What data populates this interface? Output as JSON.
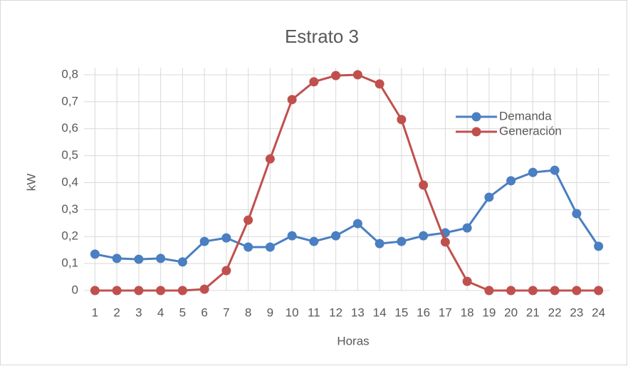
{
  "chart_data": {
    "type": "line",
    "title": "Estrato 3",
    "x_label": "Horas",
    "y_label": "kW",
    "categories": [
      "1",
      "2",
      "3",
      "4",
      "5",
      "6",
      "7",
      "8",
      "9",
      "10",
      "11",
      "12",
      "13",
      "14",
      "15",
      "16",
      "17",
      "18",
      "19",
      "20",
      "21",
      "22",
      "23",
      "24"
    ],
    "series": [
      {
        "name": "Demanda",
        "color": "#4a7fc1",
        "values": [
          0.135,
          0.119,
          0.116,
          0.119,
          0.106,
          0.182,
          0.195,
          0.161,
          0.161,
          0.203,
          0.182,
          0.203,
          0.248,
          0.174,
          0.182,
          0.203,
          0.214,
          0.232,
          0.346,
          0.407,
          0.438,
          0.446,
          0.285,
          0.164
        ]
      },
      {
        "name": "Generación",
        "color": "#c0504d",
        "values": [
          0,
          0,
          0,
          0,
          0,
          0.005,
          0.074,
          0.261,
          0.488,
          0.708,
          0.774,
          0.797,
          0.8,
          0.766,
          0.634,
          0.391,
          0.18,
          0.034,
          0,
          0,
          0,
          0,
          0,
          0
        ]
      }
    ],
    "ylim": [
      0,
      0.8
    ],
    "yticks": [
      0,
      {
        "value": 0.1,
        "label": "0,1"
      },
      {
        "value": 0.2,
        "label": "0,2"
      },
      {
        "value": 0.3,
        "label": "0,3"
      },
      {
        "value": 0.4,
        "label": "0,4"
      },
      {
        "value": 0.5,
        "label": "0,5"
      },
      {
        "value": 0.6,
        "label": "0,6"
      },
      {
        "value": 0.7,
        "label": "0,7"
      },
      {
        "value": 0.8,
        "label": "0,8"
      }
    ],
    "grid": true,
    "legend": "right"
  }
}
